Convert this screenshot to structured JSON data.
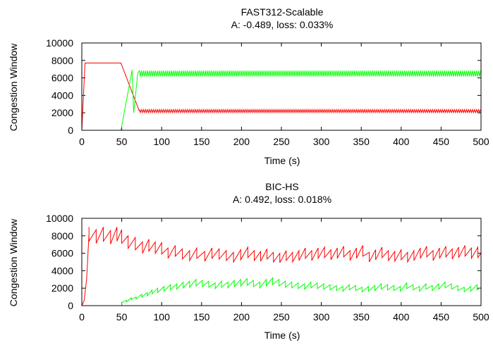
{
  "chart_data": [
    {
      "type": "line",
      "title": "FAST312-Scalable",
      "subtitle": "A: -0.489, loss: 0.033%",
      "xlabel": "Time (s)",
      "ylabel": "Congestion Window",
      "xlim": [
        0,
        500
      ],
      "ylim": [
        0,
        10000
      ],
      "xticks": [
        0,
        50,
        100,
        150,
        200,
        250,
        300,
        350,
        400,
        450,
        500
      ],
      "yticks": [
        0,
        2000,
        4000,
        6000,
        8000,
        10000
      ],
      "grid": false,
      "legend": "none",
      "series": [
        {
          "color": "#ff0000",
          "shape": "ramp-plateau-drop-oscillate",
          "points": [
            [
              0,
              0
            ],
            [
              4,
              7700
            ],
            [
              49,
              7700
            ],
            [
              72,
              2200
            ],
            [
              500,
              2200
            ]
          ],
          "oscillation": {
            "from": 72,
            "to": 500,
            "base": 2200,
            "amplitude": 170,
            "period": 2.5
          }
        },
        {
          "color": "#00ff00",
          "shape": "idle-rise-oscillate",
          "points": [
            [
              0,
              0
            ],
            [
              49,
              0
            ],
            [
              63,
              6900
            ],
            [
              65,
              2000
            ],
            [
              70,
              6500
            ],
            [
              500,
              6500
            ]
          ],
          "oscillation": {
            "from": 72,
            "to": 500,
            "base": 6500,
            "amplitude": 330,
            "period": 2.5
          }
        }
      ]
    },
    {
      "type": "line",
      "title": "BIC-HS",
      "subtitle": "A: 0.492, loss: 0.018%",
      "xlabel": "Time (s)",
      "ylabel": "Congestion Window",
      "xlim": [
        0,
        500
      ],
      "ylim": [
        0,
        10000
      ],
      "xticks": [
        0,
        50,
        100,
        150,
        200,
        250,
        300,
        350,
        400,
        450,
        500
      ],
      "yticks": [
        0,
        2000,
        4000,
        6000,
        8000,
        10000
      ],
      "grid": false,
      "legend": "none",
      "series": [
        {
          "color": "#ff0000",
          "shape": "sawtooth",
          "start": [
            [
              0,
              0
            ],
            [
              3,
              600
            ],
            [
              6,
              3000
            ],
            [
              9,
              8200
            ]
          ],
          "peaks": [
            [
              9,
              9000
            ],
            [
              18,
              8700
            ],
            [
              27,
              9000
            ],
            [
              36,
              8600
            ],
            [
              44,
              9000
            ],
            [
              50,
              8700
            ],
            [
              58,
              8000
            ],
            [
              67,
              7800
            ],
            [
              76,
              7300
            ],
            [
              84,
              7600
            ],
            [
              92,
              7300
            ],
            [
              100,
              7200
            ],
            [
              108,
              6600
            ],
            [
              117,
              6900
            ],
            [
              126,
              6500
            ],
            [
              135,
              6300
            ],
            [
              144,
              6600
            ],
            [
              154,
              6200
            ],
            [
              163,
              6600
            ],
            [
              172,
              6500
            ],
            [
              181,
              6300
            ],
            [
              190,
              6100
            ],
            [
              199,
              6400
            ],
            [
              208,
              6700
            ],
            [
              216,
              6300
            ],
            [
              224,
              6200
            ],
            [
              232,
              6500
            ],
            [
              240,
              6100
            ],
            [
              248,
              6000
            ],
            [
              256,
              6300
            ],
            [
              264,
              6100
            ],
            [
              272,
              6300
            ],
            [
              280,
              6600
            ],
            [
              288,
              6300
            ],
            [
              296,
              6600
            ],
            [
              304,
              6700
            ],
            [
              312,
              6400
            ],
            [
              320,
              6600
            ],
            [
              328,
              6800
            ],
            [
              336,
              6300
            ],
            [
              344,
              6600
            ],
            [
              352,
              6900
            ],
            [
              360,
              6100
            ],
            [
              368,
              6400
            ],
            [
              376,
              6700
            ],
            [
              384,
              6300
            ],
            [
              392,
              6200
            ],
            [
              400,
              6400
            ],
            [
              408,
              6100
            ],
            [
              416,
              6300
            ],
            [
              424,
              6600
            ],
            [
              432,
              6800
            ],
            [
              440,
              6300
            ],
            [
              448,
              6600
            ],
            [
              456,
              6800
            ],
            [
              464,
              6500
            ],
            [
              472,
              6700
            ],
            [
              480,
              6900
            ],
            [
              488,
              6600
            ],
            [
              496,
              6700
            ]
          ],
          "drop_ratio": 0.82,
          "end": [
            500,
            6000
          ]
        },
        {
          "color": "#00ff00",
          "shape": "sawtooth",
          "start": [
            [
              50,
              0
            ],
            [
              50,
              350
            ]
          ],
          "peaks": [
            [
              56,
              600
            ],
            [
              62,
              900
            ],
            [
              68,
              1000
            ],
            [
              75,
              1300
            ],
            [
              82,
              1500
            ],
            [
              88,
              1800
            ],
            [
              95,
              2000
            ],
            [
              103,
              2200
            ],
            [
              111,
              2400
            ],
            [
              119,
              2500
            ],
            [
              127,
              2700
            ],
            [
              135,
              2800
            ],
            [
              143,
              3000
            ],
            [
              151,
              2900
            ],
            [
              159,
              2800
            ],
            [
              167,
              2600
            ],
            [
              175,
              2800
            ],
            [
              183,
              2700
            ],
            [
              191,
              2900
            ],
            [
              199,
              3000
            ],
            [
              207,
              3100
            ],
            [
              215,
              2900
            ],
            [
              223,
              2700
            ],
            [
              231,
              3000
            ],
            [
              239,
              3200
            ],
            [
              247,
              3000
            ],
            [
              255,
              2800
            ],
            [
              263,
              2700
            ],
            [
              271,
              2600
            ],
            [
              279,
              2500
            ],
            [
              287,
              2700
            ],
            [
              295,
              2600
            ],
            [
              303,
              2500
            ],
            [
              311,
              2400
            ],
            [
              319,
              2300
            ],
            [
              327,
              2200
            ],
            [
              335,
              2400
            ],
            [
              343,
              2300
            ],
            [
              351,
              2100
            ],
            [
              359,
              2200
            ],
            [
              367,
              2300
            ],
            [
              375,
              2500
            ],
            [
              383,
              2400
            ],
            [
              391,
              2300
            ],
            [
              399,
              2200
            ],
            [
              407,
              2600
            ],
            [
              415,
              2400
            ],
            [
              423,
              2200
            ],
            [
              431,
              2500
            ],
            [
              439,
              2300
            ],
            [
              447,
              2500
            ],
            [
              455,
              2700
            ],
            [
              463,
              2500
            ],
            [
              471,
              2300
            ],
            [
              479,
              2100
            ],
            [
              487,
              2200
            ],
            [
              495,
              2400
            ]
          ],
          "drop_ratio": 0.75,
          "end": [
            500,
            2100
          ]
        }
      ]
    }
  ]
}
